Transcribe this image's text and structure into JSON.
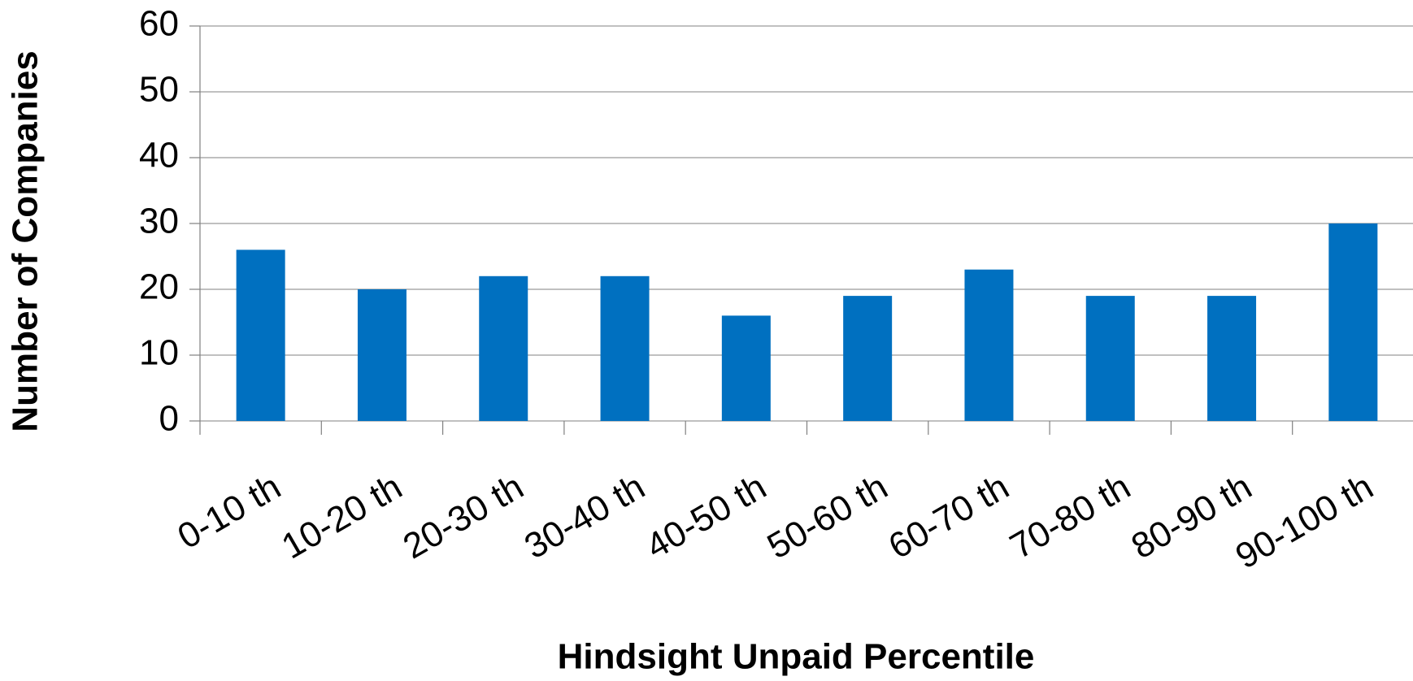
{
  "chart_data": {
    "type": "bar",
    "categories": [
      "0-10 th",
      "10-20 th",
      "20-30 th",
      "30-40 th",
      "40-50 th",
      "50-60 th",
      "60-70 th",
      "70-80 th",
      "80-90 th",
      "90-100 th"
    ],
    "values": [
      26,
      20,
      22,
      22,
      16,
      19,
      23,
      19,
      19,
      30
    ],
    "color": "#0070c0",
    "xlabel": "Hindsight Unpaid Percentile",
    "ylabel": "Number of Companies",
    "ylim": [
      0,
      60
    ],
    "yticks": [
      0,
      10,
      20,
      30,
      40,
      50,
      60
    ],
    "grid": true
  }
}
